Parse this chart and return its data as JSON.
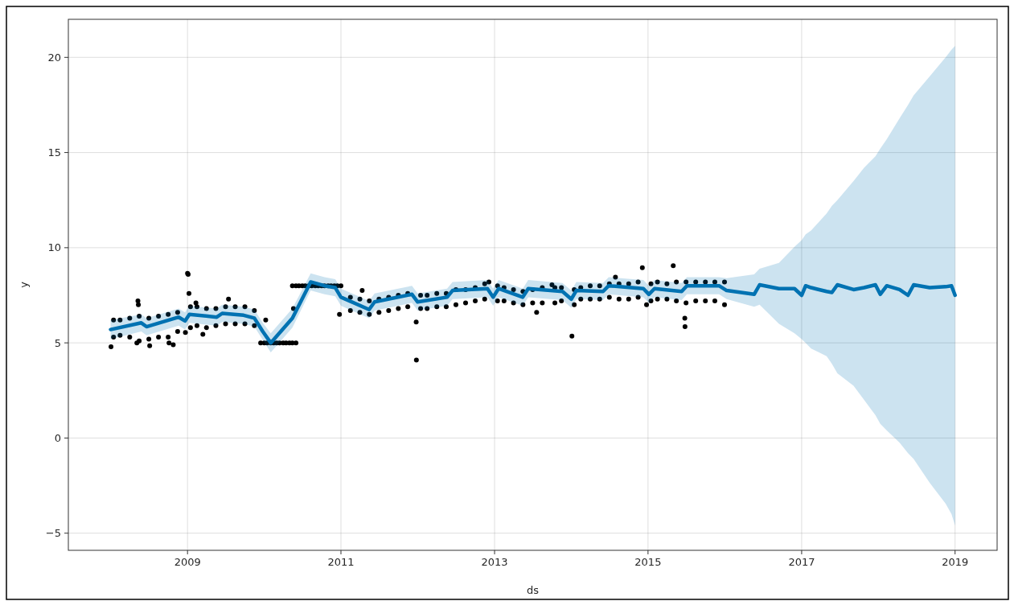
{
  "chart_data": {
    "type": "scatter",
    "xlabel": "ds",
    "ylabel": "y",
    "xlim": [
      "2007-06-14",
      "2019-07-20"
    ],
    "ylim": [
      -5.9,
      22
    ],
    "xticks": [
      "2009",
      "2011",
      "2013",
      "2015",
      "2017",
      "2019"
    ],
    "yticks": [
      {
        "value": -5,
        "label": "−5"
      },
      0,
      5,
      10,
      15,
      20
    ],
    "grid": true,
    "series": [
      {
        "color": "#000000",
        "marker": "circle",
        "x": [
          "2008-01-15",
          "2008-01-15",
          "2008-02-15",
          "2008-02-15",
          "2008-04-01",
          "2008-04-01",
          "2008-05-16",
          "2008-05-16",
          "2008-07-01",
          "2008-07-01",
          "2008-08-16",
          "2008-08-16",
          "2008-10-01",
          "2008-10-01",
          "2008-11-15",
          "2008-11-15",
          "2009-01-15",
          "2009-01-15",
          "2009-02-15",
          "2009-02-15",
          "2009-04-01",
          "2009-04-01",
          "2009-05-16",
          "2009-05-16",
          "2009-07-01",
          "2009-07-01",
          "2009-08-16",
          "2009-08-16",
          "2009-10-01",
          "2009-10-01",
          "2009-11-15",
          "2009-11-15",
          "2011-02-15",
          "2011-02-15",
          "2011-04-01",
          "2011-04-01",
          "2011-05-16",
          "2011-05-16",
          "2011-07-01",
          "2011-07-01",
          "2011-08-16",
          "2011-08-16",
          "2011-10-01",
          "2011-10-01",
          "2011-11-15",
          "2011-11-15",
          "2012-01-15",
          "2012-01-15",
          "2012-02-15",
          "2012-02-15",
          "2012-04-01",
          "2012-04-01",
          "2012-05-16",
          "2012-05-16",
          "2012-07-01",
          "2012-07-01",
          "2012-08-16",
          "2012-08-16",
          "2012-10-01",
          "2012-10-01",
          "2012-11-15",
          "2012-11-15",
          "2013-01-15",
          "2013-01-15",
          "2013-02-15",
          "2013-02-15",
          "2013-04-01",
          "2013-04-01",
          "2013-05-16",
          "2013-05-16",
          "2013-07-01",
          "2013-07-01",
          "2013-08-16",
          "2013-08-16",
          "2013-10-15",
          "2013-10-15",
          "2013-11-15",
          "2013-11-15",
          "2014-01-15",
          "2014-01-15",
          "2014-02-15",
          "2014-02-15",
          "2014-04-01",
          "2014-04-01",
          "2014-05-16",
          "2014-05-16",
          "2014-07-01",
          "2014-07-01",
          "2014-08-16",
          "2014-08-16",
          "2014-10-01",
          "2014-10-01",
          "2014-11-15",
          "2014-11-15",
          "2015-01-15",
          "2015-01-15",
          "2015-02-15",
          "2015-02-15",
          "2015-04-01",
          "2015-04-01",
          "2015-05-16",
          "2015-05-16",
          "2015-07-01",
          "2015-07-01",
          "2015-08-16",
          "2015-08-16",
          "2015-10-01",
          "2015-10-01",
          "2015-11-15",
          "2015-11-15",
          "2015-12-31",
          "2015-12-31",
          "2009-12-15",
          "2010-01-01",
          "2010-01-15",
          "2010-02-01",
          "2010-02-15",
          "2010-03-01",
          "2010-03-15",
          "2010-04-01",
          "2010-04-15",
          "2010-05-01",
          "2010-05-15",
          "2010-06-01",
          "2010-05-15",
          "2010-06-01",
          "2010-06-15",
          "2010-07-01",
          "2010-07-15",
          "2010-08-01",
          "2010-08-15",
          "2010-09-01",
          "2010-09-15",
          "2010-10-01",
          "2010-10-15",
          "2010-11-01",
          "2010-11-15",
          "2010-12-01",
          "2010-12-15",
          "2011-01-01",
          "2008-01-03",
          "2008-05-05",
          "2008-05-10",
          "2008-05-12",
          "2008-07-05",
          "2008-10-05",
          "2008-10-25",
          "2008-12-22",
          "2009-01-01",
          "2009-01-04",
          "2009-01-08",
          "2009-02-10",
          "2009-03-15",
          "2009-07-15",
          "2010-01-08",
          "2010-05-20",
          "2010-12-25",
          "2011-04-12",
          "2011-12-25",
          "2011-12-26",
          "2012-12-05",
          "2013-07-20",
          "2013-10-01",
          "2014-01-04",
          "2014-07-30",
          "2014-12-05",
          "2014-12-25",
          "2015-05-01",
          "2015-06-25",
          "2015-06-26"
        ],
        "values": [
          6.2,
          5.3,
          6.2,
          5.4,
          6.3,
          5.3,
          6.4,
          5.1,
          6.3,
          5.2,
          6.4,
          5.3,
          6.5,
          5.3,
          6.6,
          5.6,
          6.9,
          5.8,
          6.9,
          5.9,
          6.8,
          5.8,
          6.8,
          5.9,
          6.9,
          6.0,
          6.9,
          6.0,
          6.9,
          6.0,
          6.7,
          5.9,
          7.4,
          6.7,
          7.3,
          6.6,
          7.2,
          6.5,
          7.3,
          6.6,
          7.4,
          6.7,
          7.5,
          6.8,
          7.6,
          6.9,
          7.5,
          6.8,
          7.5,
          6.8,
          7.6,
          6.9,
          7.6,
          6.9,
          7.8,
          7.0,
          7.8,
          7.1,
          7.9,
          7.2,
          8.1,
          7.3,
          8.0,
          7.2,
          7.9,
          7.2,
          7.8,
          7.1,
          7.7,
          7.0,
          7.8,
          7.1,
          7.9,
          7.1,
          7.9,
          7.1,
          7.9,
          7.2,
          7.8,
          7.0,
          7.9,
          7.3,
          8.0,
          7.3,
          8.0,
          7.3,
          8.1,
          7.4,
          8.1,
          7.3,
          8.1,
          7.3,
          8.2,
          7.4,
          8.1,
          7.2,
          8.2,
          7.3,
          8.1,
          7.3,
          8.2,
          7.2,
          8.2,
          7.1,
          8.2,
          7.2,
          8.2,
          7.2,
          8.2,
          7.2,
          8.2,
          7.0,
          5.0,
          5.0,
          5.0,
          5.0,
          5.0,
          5.0,
          5.0,
          5.0,
          5.0,
          5.0,
          5.0,
          5.0,
          8.0,
          8.0,
          8.0,
          8.0,
          8.0,
          8.0,
          8.0,
          8.0,
          8.0,
          8.0,
          8.0,
          8.0,
          8.0,
          8.0,
          8.0,
          8.0,
          4.8,
          5.0,
          7.2,
          7.0,
          4.85,
          5.0,
          4.9,
          5.55,
          8.65,
          8.6,
          7.6,
          7.1,
          5.45,
          7.3,
          6.2,
          6.8,
          6.5,
          7.75,
          6.1,
          4.1,
          8.2,
          6.6,
          8.05,
          5.35,
          8.45,
          8.95,
          7.0,
          9.05,
          6.3,
          5.85
        ]
      },
      {
        "type": "line",
        "color": "#0072b2",
        "x": [
          "2008-01-01",
          "2008-05-26",
          "2008-06-20",
          "2008-11-20",
          "2008-12-20",
          "2009-01-10",
          "2009-05-20",
          "2009-06-15",
          "2009-09-25",
          "2009-11-15",
          "2009-12-25",
          "2010-02-01",
          "2010-05-15",
          "2010-08-10",
          "2010-10-15",
          "2010-12-05",
          "2011-01-01",
          "2011-05-15",
          "2011-06-10",
          "2011-12-05",
          "2012-01-01",
          "2012-05-20",
          "2012-06-15",
          "2012-11-28",
          "2012-12-25",
          "2013-01-20",
          "2013-05-15",
          "2013-06-10",
          "2013-11-20",
          "2014-01-01",
          "2014-01-25",
          "2014-06-01",
          "2014-06-28",
          "2014-12-10",
          "2015-01-05",
          "2015-02-01",
          "2015-06-10",
          "2015-07-05",
          "2015-12-05",
          "2016-01-10",
          "2016-05-20",
          "2016-06-15",
          "2016-09-15",
          "2016-11-28",
          "2017-01-01",
          "2017-01-20",
          "2017-02-15",
          "2017-04-30",
          "2017-05-25",
          "2017-06-20",
          "2017-09-05",
          "2017-10-25",
          "2017-12-18",
          "2018-01-10",
          "2018-02-10",
          "2018-04-12",
          "2018-05-22",
          "2018-06-18",
          "2018-09-02",
          "2018-11-17",
          "2018-12-15",
          "2019-01-01"
        ],
        "values": [
          5.7,
          6.05,
          5.85,
          6.35,
          6.15,
          6.5,
          6.35,
          6.55,
          6.45,
          6.3,
          5.6,
          5.0,
          6.3,
          8.2,
          8.0,
          7.9,
          7.4,
          6.75,
          7.15,
          7.55,
          7.15,
          7.4,
          7.75,
          7.85,
          7.4,
          7.85,
          7.4,
          7.85,
          7.7,
          7.3,
          7.75,
          7.7,
          8.0,
          7.85,
          7.55,
          7.85,
          7.7,
          8.0,
          8.0,
          7.75,
          7.55,
          8.05,
          7.85,
          7.85,
          7.5,
          8.0,
          7.9,
          7.7,
          7.65,
          8.05,
          7.8,
          7.9,
          8.05,
          7.55,
          8.0,
          7.8,
          7.5,
          8.05,
          7.9,
          7.95,
          8.0,
          7.5
        ],
        "lower": [
          5.2,
          5.6,
          5.4,
          5.9,
          5.7,
          6.05,
          5.9,
          6.1,
          6.0,
          5.85,
          5.15,
          4.5,
          5.8,
          7.75,
          7.55,
          7.45,
          6.95,
          6.3,
          6.7,
          7.1,
          6.7,
          6.95,
          7.3,
          7.4,
          6.95,
          7.4,
          6.95,
          7.4,
          7.25,
          6.85,
          7.3,
          7.25,
          7.55,
          7.4,
          7.1,
          7.4,
          7.25,
          7.55,
          7.55,
          7.3,
          6.9,
          7.0,
          6.0,
          5.5,
          5.2,
          5.0,
          4.7,
          4.3,
          3.9,
          3.4,
          2.75,
          2.0,
          1.2,
          0.75,
          0.4,
          -0.25,
          -0.8,
          -1.1,
          -2.35,
          -3.45,
          -4.0,
          -4.6
        ],
        "upper": [
          6.2,
          6.5,
          6.3,
          6.8,
          6.6,
          6.95,
          6.8,
          7.0,
          6.9,
          6.75,
          6.05,
          5.5,
          6.8,
          8.65,
          8.45,
          8.35,
          7.85,
          7.2,
          7.6,
          8.0,
          7.6,
          7.85,
          8.2,
          8.3,
          7.85,
          8.3,
          7.85,
          8.3,
          8.15,
          7.75,
          8.2,
          8.15,
          8.45,
          8.3,
          8.0,
          8.3,
          8.15,
          8.45,
          8.45,
          8.4,
          8.6,
          8.9,
          9.2,
          10.05,
          10.4,
          10.7,
          10.9,
          11.8,
          12.2,
          12.5,
          13.5,
          14.2,
          14.8,
          15.2,
          15.7,
          16.8,
          17.5,
          18.0,
          19.0,
          20.0,
          20.4,
          20.6
        ]
      }
    ]
  }
}
